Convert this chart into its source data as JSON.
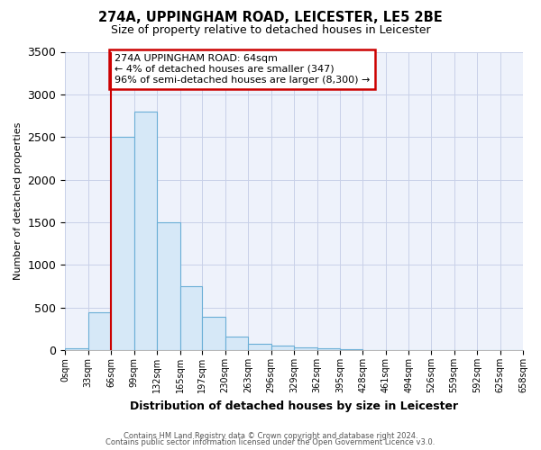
{
  "title": "274A, UPPINGHAM ROAD, LEICESTER, LE5 2BE",
  "subtitle": "Size of property relative to detached houses in Leicester",
  "xlabel": "Distribution of detached houses by size in Leicester",
  "ylabel": "Number of detached properties",
  "bin_edges": [
    0,
    33,
    66,
    99,
    132,
    165,
    197,
    230,
    263,
    296,
    329,
    362,
    395,
    428,
    461,
    494,
    526,
    559,
    592,
    625,
    658
  ],
  "bar_heights": [
    20,
    450,
    2500,
    2800,
    1500,
    750,
    390,
    155,
    75,
    50,
    35,
    20,
    8,
    0,
    0,
    0,
    0,
    0,
    0,
    0
  ],
  "bar_color": "#d6e8f7",
  "bar_edge_color": "#6aaed6",
  "property_line_x": 66,
  "property_line_color": "#cc0000",
  "annotation_text": "274A UPPINGHAM ROAD: 64sqm\n← 4% of detached houses are smaller (347)\n96% of semi-detached houses are larger (8,300) →",
  "annotation_box_color": "#ffffff",
  "annotation_box_edge_color": "#cc0000",
  "ylim": [
    0,
    3500
  ],
  "background_color": "#ffffff",
  "plot_background_color": "#eef2fb",
  "grid_color": "#c8d0e8",
  "tick_labels": [
    "0sqm",
    "33sqm",
    "66sqm",
    "99sqm",
    "132sqm",
    "165sqm",
    "197sqm",
    "230sqm",
    "263sqm",
    "296sqm",
    "329sqm",
    "362sqm",
    "395sqm",
    "428sqm",
    "461sqm",
    "494sqm",
    "526sqm",
    "559sqm",
    "592sqm",
    "625sqm",
    "658sqm"
  ],
  "footer_line1": "Contains HM Land Registry data © Crown copyright and database right 2024.",
  "footer_line2": "Contains public sector information licensed under the Open Government Licence v3.0."
}
